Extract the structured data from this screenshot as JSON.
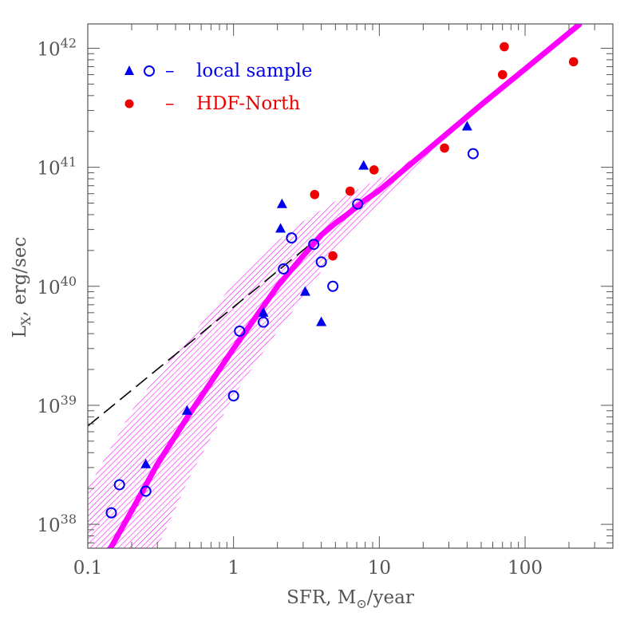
{
  "chart_data": {
    "type": "scatter",
    "xscale": "log",
    "yscale": "log",
    "xlim": [
      0.1,
      400
    ],
    "ylim": [
      6.3e+37,
      1.6e+42
    ],
    "xlabel": {
      "main": "SFR, M",
      "sub": "⊙",
      "tail": "/year"
    },
    "ylabel": {
      "main": "L",
      "sub": "X",
      "tail": ", erg/sec"
    },
    "x_ticks": [
      {
        "value": 0.1,
        "label": "0.1"
      },
      {
        "value": 1,
        "label": "1"
      },
      {
        "value": 10,
        "label": "10"
      },
      {
        "value": 100,
        "label": "100"
      }
    ],
    "y_ticks": [
      {
        "value": 1e+38,
        "base": "10",
        "exp": "38"
      },
      {
        "value": 1e+39,
        "base": "10",
        "exp": "39"
      },
      {
        "value": 1e+40,
        "base": "10",
        "exp": "40"
      },
      {
        "value": 1e+41,
        "base": "10",
        "exp": "41"
      },
      {
        "value": 1e+42,
        "base": "10",
        "exp": "42"
      }
    ],
    "legend": {
      "position": "top-left",
      "entries": [
        {
          "markers": [
            "filled-triangle",
            "open-circle"
          ],
          "dash": "–",
          "label": "local sample",
          "color": "#0000ee"
        },
        {
          "markers": [
            "filled-circle"
          ],
          "dash": "–",
          "label": "HDF-North",
          "color": "#ee0000"
        }
      ]
    },
    "colors": {
      "local": "#0000ee",
      "hdf": "#ee0000",
      "model": "#ff00ff",
      "dashed": "#000000",
      "frame": "#555555"
    },
    "series": [
      {
        "marker": "filled-triangle",
        "color": "#0000ee",
        "points": [
          [
            0.25,
            3.2e+38
          ],
          [
            0.48,
            9e+38
          ],
          [
            1.6,
            6e+39
          ],
          [
            2.1,
            3.05e+40
          ],
          [
            2.15,
            4.9e+40
          ],
          [
            3.1,
            9e+39
          ],
          [
            4.0,
            5e+39
          ],
          [
            7.8,
            1.03e+41
          ],
          [
            40,
            2.2e+41
          ]
        ]
      },
      {
        "marker": "open-circle",
        "color": "#0000ee",
        "points": [
          [
            0.145,
            1.25e+38
          ],
          [
            0.165,
            2.15e+38
          ],
          [
            0.25,
            1.9e+38
          ],
          [
            1.0,
            1.2e+39
          ],
          [
            1.1,
            4.2e+39
          ],
          [
            1.6,
            5e+39
          ],
          [
            2.2,
            1.4e+40
          ],
          [
            2.5,
            2.55e+40
          ],
          [
            3.55,
            2.25e+40
          ],
          [
            4.0,
            1.6e+40
          ],
          [
            4.8,
            1e+40
          ],
          [
            7.1,
            4.9e+40
          ],
          [
            44,
            1.3e+41
          ]
        ]
      },
      {
        "marker": "filled-circle",
        "color": "#ee0000",
        "points": [
          [
            3.6,
            5.9e+40
          ],
          [
            4.8,
            1.8e+40
          ],
          [
            6.3,
            6.3e+40
          ],
          [
            9.2,
            9.5e+40
          ],
          [
            28,
            1.45e+41
          ],
          [
            70,
            6e+41
          ],
          [
            72,
            1.03e+42
          ],
          [
            215,
            7.7e+41
          ]
        ]
      }
    ],
    "dashed_line": {
      "x": [
        0.1,
        230
      ],
      "y": [
        6.7e+38,
        1.54e+42
      ]
    },
    "model_curve": {
      "x": [
        0.14,
        0.2,
        0.3,
        0.5,
        1.0,
        2.0,
        3.0,
        4.0,
        5.0,
        6.0,
        8.0,
        10,
        20,
        50,
        100,
        235
      ],
      "y": [
        6e+37,
        1.3e+38,
        3.2e+38,
        8.5e+38,
        3e+39,
        1e+40,
        1.8e+40,
        2.7e+40,
        3.4e+40,
        4e+40,
        5.3e+40,
        6.4e+40,
        1.3e+41,
        3.35e+41,
        6.7e+41,
        1.58e+42
      ]
    },
    "model_band": {
      "x": [
        0.1,
        0.2,
        0.3,
        0.5,
        1.0,
        2.0,
        3.0,
        5.0,
        8.0,
        12,
        20,
        30
      ],
      "upper": [
        2e+38,
        9e+38,
        1.8e+39,
        3.7e+39,
        1.05e+40,
        2.4e+40,
        3.5e+40,
        5.2e+40,
        7e+40,
        9e+40,
        1.35e+41,
        2e+41
      ],
      "lower": [
        6.3e+37,
        6.3e+37,
        6.3e+37,
        2.5e+38,
        1.2e+39,
        4.2e+39,
        8e+39,
        2e+40,
        3.8e+40,
        6e+40,
        1.1e+41,
        1.8e+41
      ]
    }
  }
}
